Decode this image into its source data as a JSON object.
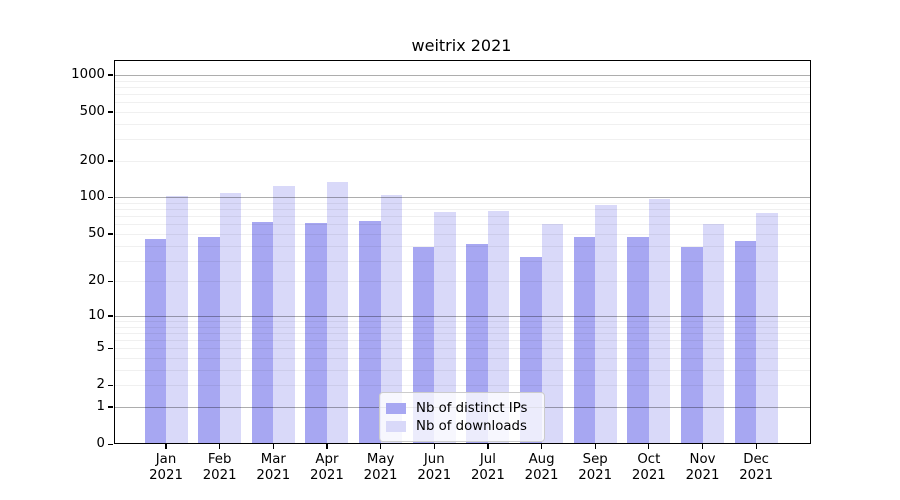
{
  "title": "weitrix 2021",
  "chart_data": {
    "type": "bar",
    "title": "weitrix 2021",
    "categories": [
      "Jan 2021",
      "Feb 2021",
      "Mar 2021",
      "Apr 2021",
      "May 2021",
      "Jun 2021",
      "Jul 2021",
      "Aug 2021",
      "Sep 2021",
      "Oct 2021",
      "Nov 2021",
      "Dec 2021"
    ],
    "month_labels": [
      "Jan",
      "Feb",
      "Mar",
      "Apr",
      "May",
      "Jun",
      "Jul",
      "Aug",
      "Sep",
      "Oct",
      "Nov",
      "Dec"
    ],
    "year_label": "2021",
    "series": [
      {
        "name": "Nb of distinct IPs",
        "color": "#a7a7f2",
        "values": [
          45,
          47,
          63,
          62,
          64,
          39,
          41,
          32,
          47,
          47,
          39,
          44
        ]
      },
      {
        "name": "Nb of downloads",
        "color": "#d9d9f9",
        "values": [
          103,
          108,
          124,
          134,
          105,
          76,
          77,
          60,
          86,
          98,
          60,
          74
        ]
      }
    ],
    "y_ticks": [
      0,
      1,
      2,
      5,
      10,
      20,
      50,
      100,
      200,
      500,
      1000
    ],
    "y_scale": "log10(value+1)",
    "y_axis_top_value": 1300,
    "grid": true,
    "legend_position": "bottom-center",
    "xlabel": "",
    "ylabel": ""
  }
}
